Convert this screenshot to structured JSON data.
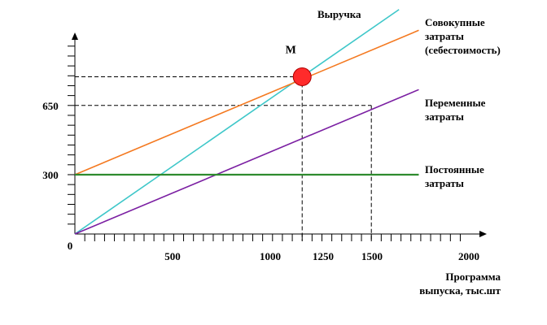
{
  "chart_data": {
    "type": "line",
    "title": "",
    "xlabel": [
      "Программа",
      "выпуска, тыс.шт"
    ],
    "ylabel": "",
    "xlim": [
      0,
      2050
    ],
    "ylim": [
      0,
      1000
    ],
    "x_ticks": [
      0,
      500,
      1000,
      1250,
      1500,
      2000
    ],
    "x_tick_labels": [
      "0",
      "500",
      "1000",
      "1250",
      "1500",
      "2000"
    ],
    "y_ticks": [
      300,
      650
    ],
    "y_tick_labels": [
      "300",
      "650"
    ],
    "series": [
      {
        "name": "Выручка",
        "color": "#3ec7c9",
        "x": [
          0,
          1640
        ],
        "y": [
          0,
          1135
        ]
      },
      {
        "name": "Совокупные затраты (себестоимость)",
        "name_lines": [
          "Совокупные",
          "затраты",
          "(себестоимость)"
        ],
        "color": "#f47920",
        "x": [
          0,
          1740
        ],
        "y": [
          300,
          1030
        ]
      },
      {
        "name": "Переменные затраты",
        "name_lines": [
          "Переменные",
          "затраты"
        ],
        "color": "#7b1fa2",
        "x": [
          0,
          1740
        ],
        "y": [
          0,
          730
        ]
      },
      {
        "name": "Постоянные затраты",
        "name_lines": [
          "Постоянные",
          "затраты"
        ],
        "color": "#2e8b2e",
        "x": [
          0,
          1740
        ],
        "y": [
          300,
          300
        ]
      }
    ],
    "point": {
      "label": "M",
      "x": 1150,
      "y": 795,
      "color": "#ff2b2b"
    },
    "guides": [
      {
        "x": 1150,
        "y": 795
      },
      {
        "x": 1500,
        "y": 650
      }
    ],
    "grid": false
  }
}
